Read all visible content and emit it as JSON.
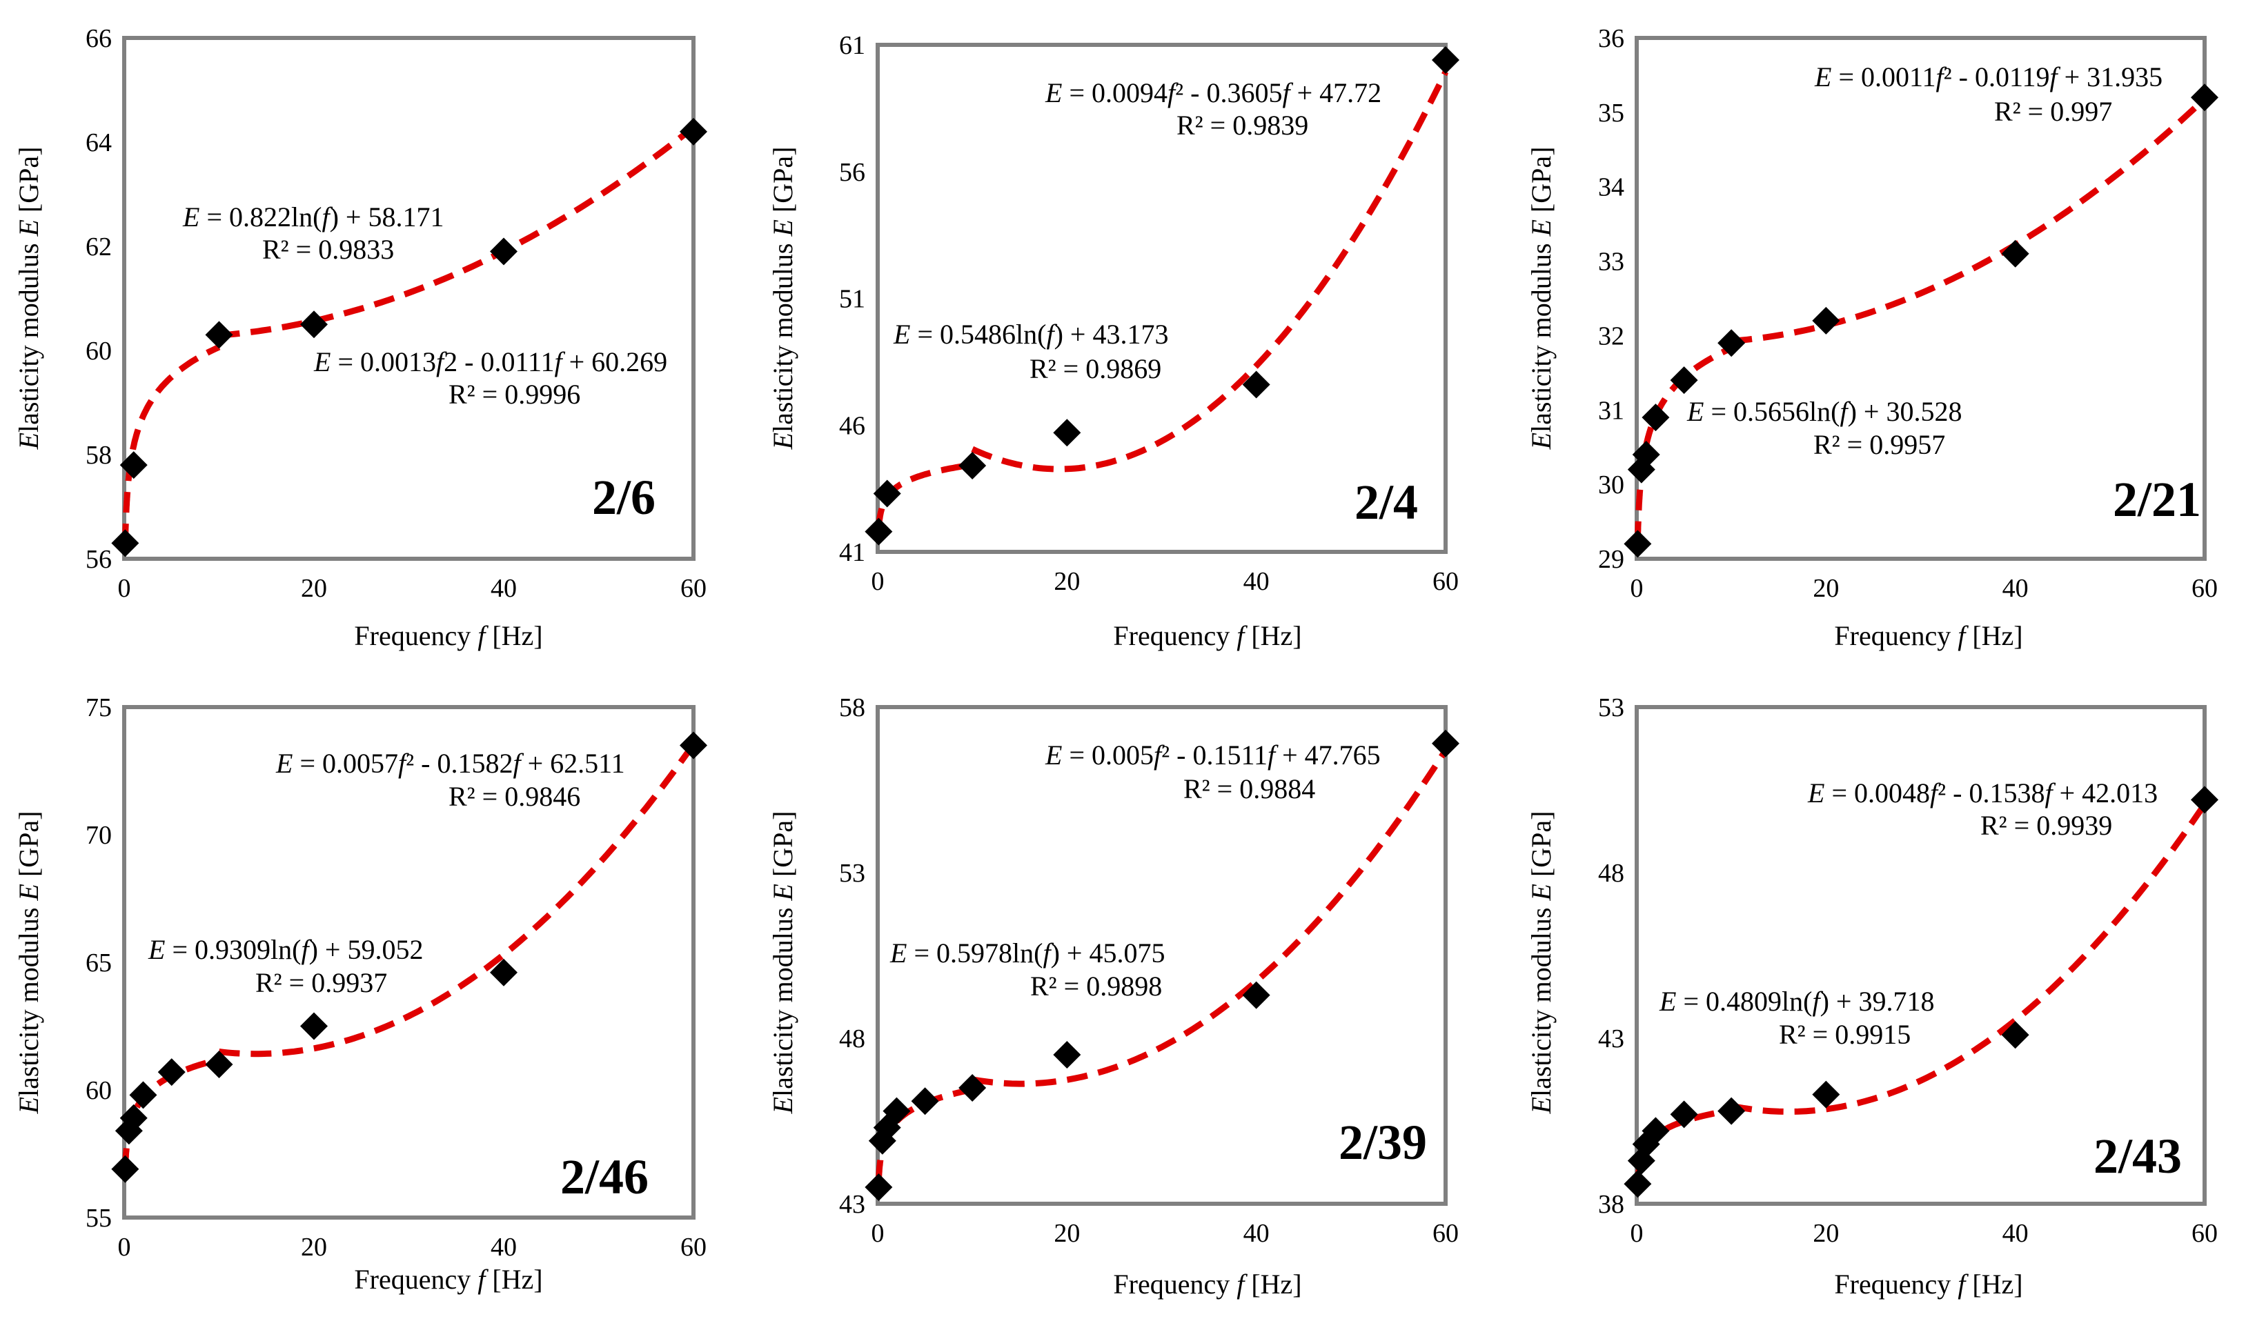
{
  "colors": {
    "fit": "#e00000",
    "marker": "#000000",
    "frame": "#808080",
    "background": "#ffffff"
  },
  "chart_data": [
    {
      "type": "scatter",
      "panel_label": "2/6",
      "xlabel": "Frequency f [Hz]",
      "ylabel": "Elasticity modulus E [GPa]",
      "xlim": [
        0,
        60
      ],
      "ylim": [
        56,
        66
      ],
      "xticks": [
        0,
        20,
        40,
        60
      ],
      "yticks": [
        56,
        58,
        60,
        62,
        64,
        66
      ],
      "points": {
        "x": [
          0.1,
          1,
          10,
          20,
          40,
          60
        ],
        "y": [
          56.3,
          57.8,
          60.3,
          60.5,
          61.9,
          64.2
        ]
      },
      "fits": [
        {
          "kind": "log",
          "domain": [
            0.1,
            10
          ],
          "coef": [
            0.822,
            58.171
          ],
          "equation": "E = 0.822ln(f) + 58.171",
          "r2": "R² = 0.9833"
        },
        {
          "kind": "poly2",
          "domain": [
            10,
            60
          ],
          "coef": [
            0.0013,
            -0.0111,
            60.269
          ],
          "equation": "E = 0.0013f2 - 0.0111f + 60.269",
          "r2": "R² = 0.9996"
        }
      ]
    },
    {
      "type": "scatter",
      "panel_label": "2/4",
      "xlabel": "Frequency f [Hz]",
      "ylabel": "Elasticity modulus E [GPa]",
      "xlim": [
        0,
        60
      ],
      "ylim": [
        41,
        61
      ],
      "xticks": [
        0,
        20,
        40,
        60
      ],
      "yticks": [
        41,
        46,
        51,
        56,
        61
      ],
      "points": {
        "x": [
          0.1,
          1,
          10,
          20,
          40,
          60
        ],
        "y": [
          41.8,
          43.3,
          44.4,
          45.7,
          47.6,
          60.4
        ]
      },
      "fits": [
        {
          "kind": "log",
          "domain": [
            0.1,
            10
          ],
          "coef": [
            0.5486,
            43.173
          ],
          "equation": "E = 0.5486ln(f) + 43.173",
          "r2": "R² = 0.9869"
        },
        {
          "kind": "poly2",
          "domain": [
            10,
            60
          ],
          "coef": [
            0.0094,
            -0.3605,
            47.72
          ],
          "equation": "E = 0.0094f² - 0.3605f + 47.72",
          "r2": "R² = 0.9839"
        }
      ]
    },
    {
      "type": "scatter",
      "panel_label": "2/21",
      "xlabel": "Frequency f [Hz]",
      "ylabel": "Elasticity modulus E [GPa]",
      "xlim": [
        0,
        60
      ],
      "ylim": [
        29,
        36
      ],
      "xticks": [
        0,
        20,
        40,
        60
      ],
      "yticks": [
        29,
        30,
        31,
        32,
        33,
        34,
        35,
        36
      ],
      "points": {
        "x": [
          0.1,
          0.5,
          1,
          2,
          5,
          10,
          20,
          40,
          60
        ],
        "y": [
          29.2,
          30.2,
          30.4,
          30.9,
          31.4,
          31.9,
          32.2,
          33.1,
          35.2
        ]
      },
      "fits": [
        {
          "kind": "log",
          "domain": [
            0.1,
            10
          ],
          "coef": [
            0.5656,
            30.528
          ],
          "equation": "E = 0.5656ln(f) + 30.528",
          "r2": "R² = 0.9957"
        },
        {
          "kind": "poly2",
          "domain": [
            10,
            60
          ],
          "coef": [
            0.0011,
            -0.0119,
            31.935
          ],
          "equation": "E = 0.0011f² - 0.0119f + 31.935",
          "r2": "R² = 0.997"
        }
      ]
    },
    {
      "type": "scatter",
      "panel_label": "2/46",
      "xlabel": "Frequency f [Hz]",
      "ylabel": "Elasticity modulus E [GPa]",
      "xlim": [
        0,
        60
      ],
      "ylim": [
        55,
        75
      ],
      "xticks": [
        0,
        20,
        40,
        60
      ],
      "yticks": [
        55,
        60,
        65,
        70,
        75
      ],
      "points": {
        "x": [
          0.1,
          0.5,
          1,
          2,
          5,
          10,
          20,
          40,
          60
        ],
        "y": [
          56.9,
          58.4,
          58.9,
          59.8,
          60.7,
          61.0,
          62.5,
          64.6,
          73.5
        ]
      },
      "fits": [
        {
          "kind": "log",
          "domain": [
            0.1,
            10
          ],
          "coef": [
            0.9309,
            59.052
          ],
          "equation": "E = 0.9309ln(f) + 59.052",
          "r2": "R² = 0.9937"
        },
        {
          "kind": "poly2",
          "domain": [
            10,
            60
          ],
          "coef": [
            0.0057,
            -0.1582,
            62.511
          ],
          "equation": "E = 0.0057f² - 0.1582f + 62.511",
          "r2": "R² = 0.9846"
        }
      ]
    },
    {
      "type": "scatter",
      "panel_label": "2/39",
      "xlabel": "Frequency f [Hz]",
      "ylabel": "Elasticity modulus E [GPa]",
      "xlim": [
        0,
        60
      ],
      "ylim": [
        43,
        58
      ],
      "xticks": [
        0,
        20,
        40,
        60
      ],
      "yticks": [
        43,
        48,
        53,
        58
      ],
      "points": {
        "x": [
          0.1,
          0.5,
          1,
          2,
          5,
          10,
          20,
          40,
          60
        ],
        "y": [
          43.5,
          44.9,
          45.3,
          45.8,
          46.1,
          46.5,
          47.5,
          49.3,
          56.9
        ]
      },
      "fits": [
        {
          "kind": "log",
          "domain": [
            0.1,
            10
          ],
          "coef": [
            0.5978,
            45.075
          ],
          "equation": "E = 0.5978ln(f) + 45.075",
          "r2": "R² = 0.9898"
        },
        {
          "kind": "poly2",
          "domain": [
            10,
            60
          ],
          "coef": [
            0.005,
            -0.1511,
            47.765
          ],
          "equation": "E = 0.005f² - 0.1511f + 47.765",
          "r2": "R² = 0.9884"
        }
      ]
    },
    {
      "type": "scatter",
      "panel_label": "2/43",
      "xlabel": "Frequency f [Hz]",
      "ylabel": "Elasticity modulus E [GPa]",
      "xlim": [
        0,
        60
      ],
      "ylim": [
        38,
        53
      ],
      "xticks": [
        0,
        20,
        40,
        60
      ],
      "yticks": [
        38,
        43,
        48,
        53
      ],
      "points": {
        "x": [
          0.1,
          0.5,
          1,
          2,
          5,
          10,
          20,
          40,
          60
        ],
        "y": [
          38.6,
          39.3,
          39.8,
          40.2,
          40.7,
          40.8,
          41.3,
          43.1,
          50.2
        ]
      },
      "fits": [
        {
          "kind": "log",
          "domain": [
            0.1,
            10
          ],
          "coef": [
            0.4809,
            39.718
          ],
          "equation": "E = 0.4809ln(f) + 39.718",
          "r2": "R² = 0.9915"
        },
        {
          "kind": "poly2",
          "domain": [
            10,
            60
          ],
          "coef": [
            0.0048,
            -0.1538,
            42.013
          ],
          "equation": "E = 0.0048f² - 0.1538f + 42.013",
          "r2": "R² = 0.9939"
        }
      ]
    }
  ]
}
